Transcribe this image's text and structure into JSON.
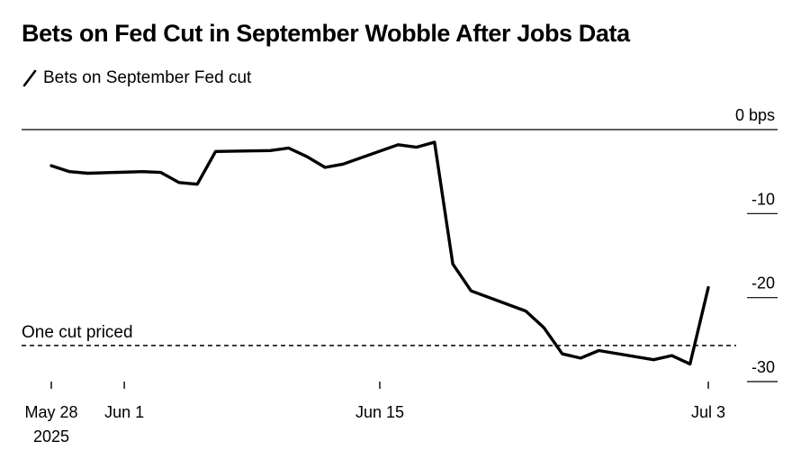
{
  "chart_data": {
    "type": "line",
    "title": "Bets on Fed Cut in September Wobble After Jobs Data",
    "legend": [
      {
        "label": "Bets on September Fed cut",
        "color": "#000000"
      }
    ],
    "y_unit_label": "0 bps",
    "ylim": [
      -30,
      0
    ],
    "y_ticks": [
      {
        "value": 0,
        "label": "0 bps"
      },
      {
        "value": -10,
        "label": "-10"
      },
      {
        "value": -20,
        "label": "-20"
      },
      {
        "value": -30,
        "label": "-30"
      }
    ],
    "x_range": [
      "2025-05-28",
      "2025-07-03"
    ],
    "x_ticks": [
      {
        "date": "2025-05-28",
        "label": "May 28",
        "sublabel": "2025"
      },
      {
        "date": "2025-06-01",
        "label": "Jun 1",
        "sublabel": ""
      },
      {
        "date": "2025-06-15",
        "label": "Jun 15",
        "sublabel": ""
      },
      {
        "date": "2025-07-03",
        "label": "Jul 3",
        "sublabel": ""
      }
    ],
    "reference_line": {
      "value": -25.7,
      "label": "One cut priced",
      "style": "dashed"
    },
    "series": [
      {
        "color": "#000000",
        "points": [
          {
            "x": "2025-05-28",
            "y": -4.3
          },
          {
            "x": "2025-05-29",
            "y": -5.0
          },
          {
            "x": "2025-05-30",
            "y": -5.2
          },
          {
            "x": "2025-06-02",
            "y": -5.0
          },
          {
            "x": "2025-06-03",
            "y": -5.1
          },
          {
            "x": "2025-06-04",
            "y": -6.3
          },
          {
            "x": "2025-06-05",
            "y": -6.5
          },
          {
            "x": "2025-06-06",
            "y": -2.6
          },
          {
            "x": "2025-06-09",
            "y": -2.5
          },
          {
            "x": "2025-06-10",
            "y": -2.2
          },
          {
            "x": "2025-06-11",
            "y": -3.2
          },
          {
            "x": "2025-06-12",
            "y": -4.5
          },
          {
            "x": "2025-06-13",
            "y": -4.1
          },
          {
            "x": "2025-06-16",
            "y": -1.8
          },
          {
            "x": "2025-06-17",
            "y": -2.1
          },
          {
            "x": "2025-06-18",
            "y": -1.5
          },
          {
            "x": "2025-06-19",
            "y": -16.0
          },
          {
            "x": "2025-06-20",
            "y": -19.2
          },
          {
            "x": "2025-06-23",
            "y": -21.6
          },
          {
            "x": "2025-06-24",
            "y": -23.6
          },
          {
            "x": "2025-06-25",
            "y": -26.7
          },
          {
            "x": "2025-06-26",
            "y": -27.2
          },
          {
            "x": "2025-06-27",
            "y": -26.3
          },
          {
            "x": "2025-06-30",
            "y": -27.4
          },
          {
            "x": "2025-07-01",
            "y": -26.9
          },
          {
            "x": "2025-07-02",
            "y": -27.9
          },
          {
            "x": "2025-07-03",
            "y": -18.8
          }
        ]
      }
    ]
  }
}
